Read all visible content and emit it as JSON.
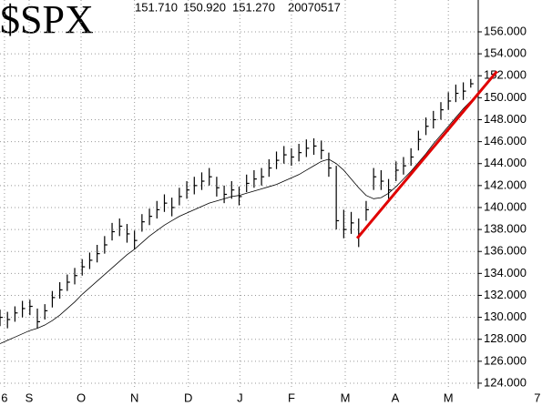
{
  "chart_data": {
    "type": "ohlc",
    "title": "$SPX",
    "quote": [
      "151.710",
      "150.920",
      "151.270"
    ],
    "date": "20070517",
    "high": [
      130.7,
      130.5,
      131.0,
      131.5,
      131.6,
      130.8,
      131.2,
      132.4,
      133.2,
      133.9,
      134.5,
      135.3,
      135.9,
      136.6,
      137.4,
      138.6,
      139.0,
      138.5,
      137.9,
      139.4,
      139.9,
      140.6,
      141.2,
      140.9,
      141.8,
      142.4,
      142.8,
      143.2,
      143.6,
      142.8,
      142.0,
      142.4,
      141.9,
      143.0,
      143.4,
      143.6,
      144.4,
      145.1,
      145.6,
      145.4,
      145.8,
      146.2,
      146.3,
      146.1,
      145.0,
      143.8,
      139.8,
      139.6,
      139.0,
      140.6,
      143.6,
      143.4,
      142.6,
      144.2,
      144.6,
      145.4,
      147.0,
      148.2,
      148.8,
      149.6,
      150.5,
      151.2,
      151.4,
      151.71
    ],
    "low": [
      129.2,
      129.0,
      129.6,
      130.0,
      130.2,
      129.0,
      129.8,
      130.9,
      131.7,
      132.4,
      133.0,
      133.8,
      134.4,
      135.0,
      135.8,
      137.0,
      137.4,
      136.8,
      136.2,
      137.8,
      138.4,
      139.0,
      139.6,
      139.2,
      140.2,
      140.8,
      141.2,
      141.6,
      142.0,
      141.0,
      140.4,
      140.8,
      140.2,
      141.4,
      141.8,
      142.0,
      142.8,
      143.5,
      144.0,
      143.8,
      144.2,
      144.6,
      144.8,
      144.4,
      142.8,
      138.0,
      137.2,
      137.6,
      136.4,
      138.8,
      141.6,
      141.6,
      140.8,
      142.4,
      143.0,
      143.8,
      145.2,
      146.6,
      147.2,
      148.0,
      148.9,
      149.6,
      149.8,
      150.92
    ],
    "close": [
      130.0,
      129.8,
      130.4,
      130.8,
      131.0,
      129.6,
      130.6,
      131.8,
      132.5,
      133.2,
      133.8,
      134.6,
      135.2,
      135.8,
      136.6,
      137.8,
      138.3,
      137.6,
      137.0,
      138.7,
      139.2,
      139.8,
      140.4,
      140.0,
      141.0,
      141.6,
      142.0,
      142.4,
      142.8,
      141.8,
      141.2,
      141.6,
      141.0,
      142.2,
      142.6,
      142.8,
      143.6,
      144.3,
      144.8,
      144.6,
      145.0,
      145.4,
      145.6,
      145.2,
      143.6,
      138.8,
      138.0,
      138.6,
      137.6,
      139.8,
      142.8,
      142.4,
      141.6,
      143.4,
      143.8,
      144.6,
      146.2,
      147.4,
      148.0,
      148.9,
      149.7,
      150.4,
      150.6,
      151.27
    ],
    "moving_average": [
      127.6,
      127.9,
      128.2,
      128.5,
      128.8,
      129.0,
      129.3,
      129.7,
      130.2,
      130.8,
      131.4,
      132.1,
      132.7,
      133.3,
      133.9,
      134.5,
      135.1,
      135.7,
      136.2,
      136.8,
      137.4,
      137.9,
      138.4,
      138.8,
      139.2,
      139.5,
      139.8,
      140.1,
      140.4,
      140.6,
      140.8,
      141.0,
      141.1,
      141.3,
      141.5,
      141.7,
      141.9,
      142.1,
      142.4,
      142.7,
      143.0,
      143.4,
      143.8,
      144.2,
      144.4,
      144.0,
      143.4,
      142.6,
      141.8,
      141.1,
      140.8,
      140.9,
      141.3,
      141.9,
      142.6,
      143.3,
      144.1,
      144.9,
      145.8,
      146.6,
      147.4,
      148.2,
      149.0,
      149.7
    ],
    "trendline": {
      "x": [
        47.8,
        66.5
      ],
      "values": [
        137.2,
        152.4
      ],
      "color": "#e00000"
    },
    "xlim": [
      0,
      64
    ],
    "xticks": [
      {
        "value": 0.6,
        "label": "6"
      },
      {
        "value": 3.9,
        "label": "S"
      },
      {
        "value": 10.85,
        "label": "O"
      },
      {
        "value": 18.0,
        "label": "N"
      },
      {
        "value": 25.2,
        "label": "D"
      },
      {
        "value": 32.1,
        "label": "J"
      },
      {
        "value": 39.0,
        "label": "F"
      },
      {
        "value": 46.2,
        "label": "M"
      },
      {
        "value": 52.9,
        "label": "A"
      },
      {
        "value": 60.0,
        "label": "M"
      },
      {
        "value": 71.9,
        "label": "7"
      }
    ],
    "ylim": [
      123.5,
      158.9
    ],
    "yticks": [
      {
        "value": 124,
        "label": "124.000"
      },
      {
        "value": 126,
        "label": "126.000"
      },
      {
        "value": 128,
        "label": "128.000"
      },
      {
        "value": 130,
        "label": "130.000"
      },
      {
        "value": 132,
        "label": "132.000"
      },
      {
        "value": 134,
        "label": "134.000"
      },
      {
        "value": 136,
        "label": "136.000"
      },
      {
        "value": 138,
        "label": "138.000"
      },
      {
        "value": 140,
        "label": "140.000"
      },
      {
        "value": 142,
        "label": "142.000"
      },
      {
        "value": 144,
        "label": "144.000"
      },
      {
        "value": 146,
        "label": "146.000"
      },
      {
        "value": 148,
        "label": "148.000"
      },
      {
        "value": 150,
        "label": "150.000"
      },
      {
        "value": 152,
        "label": "152.000"
      },
      {
        "value": 154,
        "label": "154.000"
      },
      {
        "value": 156,
        "label": "156.000"
      }
    ],
    "grid": true
  }
}
